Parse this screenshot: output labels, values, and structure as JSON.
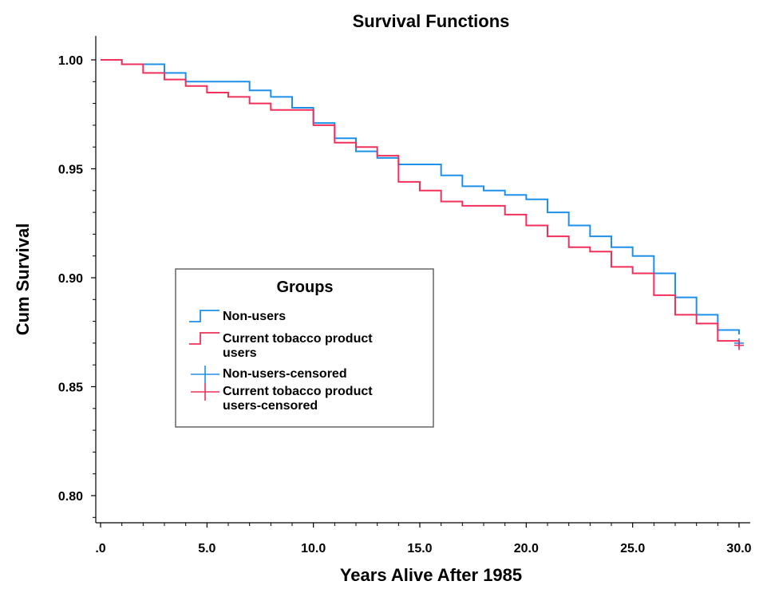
{
  "chart_data": {
    "type": "line",
    "title": "Survival Functions",
    "xlabel": "Years Alive After 1985",
    "ylabel": "Cum Survival",
    "xlim": [
      0,
      30
    ],
    "ylim": [
      0.79,
      1.01
    ],
    "x_ticks": [
      0,
      5,
      10,
      15,
      20,
      25,
      30
    ],
    "x_tick_labels": [
      ".0",
      "5.0",
      "10.0",
      "15.0",
      "20.0",
      "25.0",
      "30.0"
    ],
    "y_ticks": [
      0.8,
      0.85,
      0.9,
      0.95,
      1.0
    ],
    "y_tick_labels": [
      "0.80",
      "0.85",
      "0.90",
      "0.95",
      "1.00"
    ],
    "grid": false,
    "legend": {
      "title": "Groups",
      "placement": "center-left",
      "entries": [
        {
          "label": "Non-users",
          "marker": "step",
          "color": "#1e90e8"
        },
        {
          "label": "Current tobacco product users",
          "label_lines": [
            "Current tobacco product",
            "users"
          ],
          "marker": "step",
          "color": "#f0305a"
        },
        {
          "label": "Non-users-censored",
          "marker": "plus",
          "color": "#1e90e8"
        },
        {
          "label": "Current tobacco product users-censored",
          "label_lines": [
            "Current tobacco product",
            "users-censored"
          ],
          "marker": "plus",
          "color": "#f0305a"
        }
      ]
    },
    "series": [
      {
        "name": "Non-users",
        "kind": "step",
        "color": "#1e90e8",
        "x": [
          0,
          1,
          3,
          4,
          7,
          8,
          9,
          10,
          11,
          12,
          13,
          14,
          16,
          17,
          18,
          19,
          20,
          21,
          22,
          23,
          24,
          25,
          26,
          27,
          28,
          29,
          30
        ],
        "y": [
          1.0,
          0.998,
          0.994,
          0.99,
          0.986,
          0.983,
          0.978,
          0.971,
          0.964,
          0.958,
          0.955,
          0.952,
          0.947,
          0.942,
          0.94,
          0.938,
          0.936,
          0.93,
          0.924,
          0.919,
          0.914,
          0.91,
          0.902,
          0.891,
          0.883,
          0.876,
          0.874
        ]
      },
      {
        "name": "Current tobacco product users",
        "kind": "step",
        "color": "#f0305a",
        "x": [
          0,
          1,
          2,
          3,
          4,
          5,
          6,
          7,
          8,
          9,
          10,
          11,
          12,
          13,
          14,
          15,
          16,
          17,
          19,
          20,
          21,
          22,
          23,
          24,
          25,
          26,
          27,
          28,
          29,
          30
        ],
        "y": [
          1.0,
          0.998,
          0.994,
          0.991,
          0.988,
          0.985,
          0.983,
          0.98,
          0.977,
          0.977,
          0.97,
          0.962,
          0.96,
          0.956,
          0.944,
          0.94,
          0.935,
          0.933,
          0.929,
          0.924,
          0.919,
          0.914,
          0.912,
          0.905,
          0.902,
          0.892,
          0.883,
          0.879,
          0.871,
          0.869
        ]
      }
    ],
    "censored": [
      {
        "series": "Non-users",
        "x": 30,
        "y": 0.87,
        "color": "#1e90e8"
      },
      {
        "series": "Current tobacco product users",
        "x": 30,
        "y": 0.869,
        "color": "#f0305a"
      }
    ]
  }
}
